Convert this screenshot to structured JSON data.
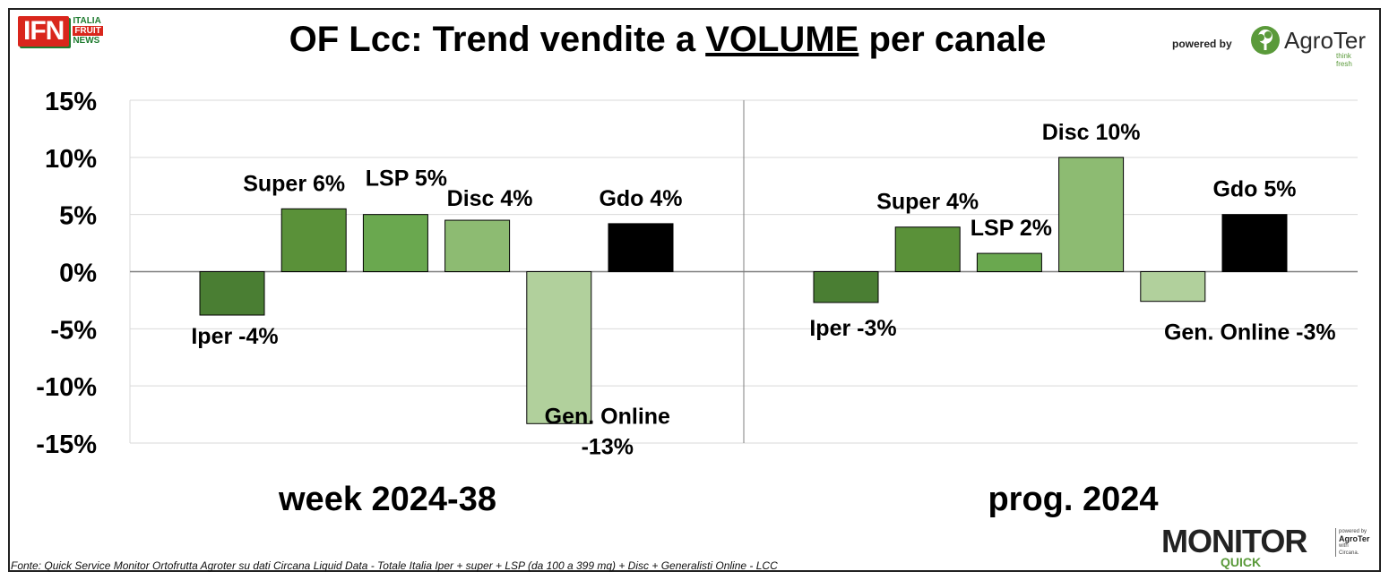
{
  "logos": {
    "ifn": "IFN",
    "ifn_words": [
      "ITALIA",
      "FRUIT",
      "NEWS"
    ],
    "powered_by": "powered by",
    "agroter": "AgroTer",
    "agroter_tagline": "think fresh",
    "monitor": "MONITOR",
    "quick": "QUICK",
    "monitor_powered": "powered by",
    "monitor_agroter": "AgroTer",
    "monitor_with": "with",
    "monitor_circana": "Circana."
  },
  "footer": "Fonte: Quick Service Monitor Ortofrutta Agroter su dati Circana Liquid Data - Totale Italia Iper + super + LSP (da 100 a 399 mq) + Disc + Generalisti Online - LCC",
  "colors": {
    "Iper": "#4a7e33",
    "Super": "#5a9139",
    "LSP": "#6aa84f",
    "Disc": "#8dbb72",
    "Gen. Online": "#b1d09c",
    "Gdo": "#000000",
    "grid": "#d9d9d9",
    "axis": "#7f7f7f"
  },
  "chart_data": {
    "type": "bar",
    "title": "OF Lcc: Trend vendite a VOLUME per canale",
    "title_parts": [
      "OF Lcc: Trend vendite a ",
      "VOLUME",
      " per canale"
    ],
    "ylim": [
      -0.15,
      0.15
    ],
    "yticks": [
      0.15,
      0.1,
      0.05,
      0.0,
      -0.05,
      -0.1,
      -0.15
    ],
    "ytick_labels": [
      "15%",
      "10%",
      "5%",
      "0%",
      "-5%",
      "-10%",
      "-15%"
    ],
    "grid": true,
    "categories": [
      "Iper",
      "Super",
      "LSP",
      "Disc",
      "Gen. Online",
      "Gdo"
    ],
    "groups": [
      {
        "name": "week 2024-38",
        "values": [
          -0.038,
          0.055,
          0.05,
          0.045,
          -0.133,
          0.042
        ],
        "labels": [
          "Iper -4%",
          "Super 6%",
          "LSP 5%",
          "Disc 4%",
          "Gen. Online\n-13%",
          "Gdo 4%"
        ]
      },
      {
        "name": "prog. 2024",
        "values": [
          -0.027,
          0.039,
          0.016,
          0.1,
          -0.026,
          0.05
        ],
        "labels": [
          "Iper -3%",
          "Super 4%",
          "LSP 2%",
          "Disc 10%",
          "Gen. Online -3%",
          "Gdo 5%"
        ]
      }
    ]
  }
}
